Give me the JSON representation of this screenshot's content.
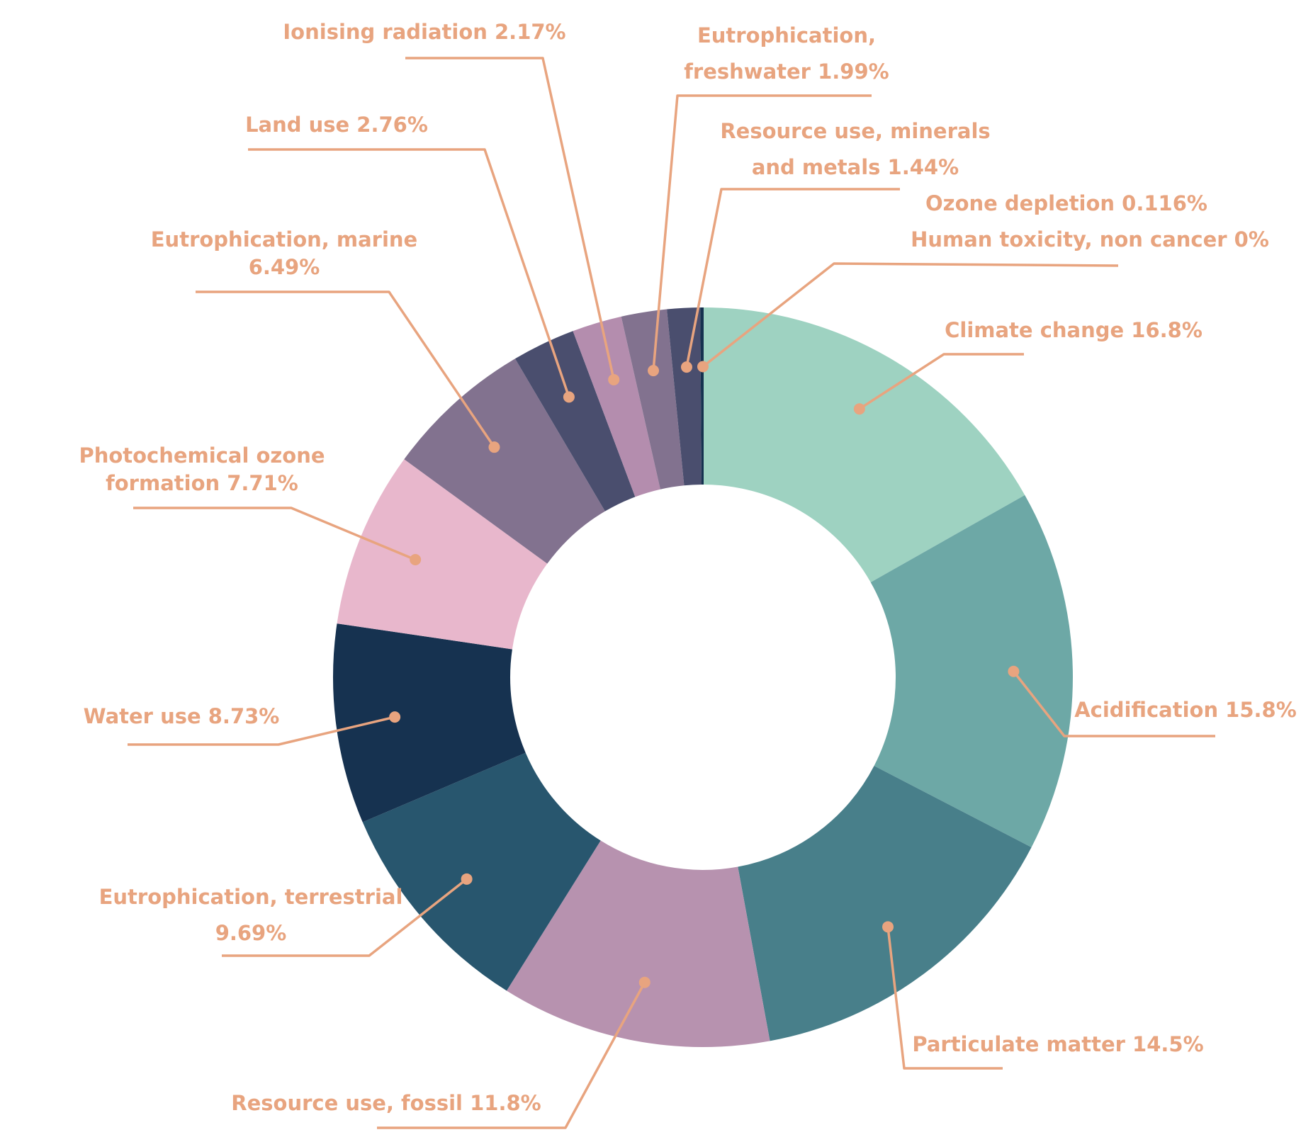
{
  "chart_data": {
    "type": "pie",
    "variant": "donut",
    "label_color": "#E8A47F",
    "slices": [
      {
        "label": [
          "Climate change 16.8%"
        ],
        "value": 16.8,
        "color": "#9ED2C1"
      },
      {
        "label": [
          "Acidification 15.8%"
        ],
        "value": 15.8,
        "color": "#6DA8A6"
      },
      {
        "label": [
          "Particulate matter 14.5%"
        ],
        "value": 14.5,
        "color": "#487F8A"
      },
      {
        "label": [
          "Resource use, fossil 11.8%"
        ],
        "value": 11.8,
        "color": "#B792AF"
      },
      {
        "label": [
          "Eutrophication, terrestrial",
          "9.69%"
        ],
        "value": 9.69,
        "color": "#28566E"
      },
      {
        "label": [
          "Water use 8.73%"
        ],
        "value": 8.73,
        "color": "#163250"
      },
      {
        "label": [
          "Photochemical ozone",
          "formation 7.71%"
        ],
        "value": 7.71,
        "color": "#E8B7CC"
      },
      {
        "label": [
          "Eutrophication, marine",
          "6.49%"
        ],
        "value": 6.49,
        "color": "#82728F"
      },
      {
        "label": [
          "Land use 2.76%"
        ],
        "value": 2.76,
        "color": "#4A4E6E"
      },
      {
        "label": [
          "Ionising radiation 2.17%"
        ],
        "value": 2.17,
        "color": "#B48DAE"
      },
      {
        "label": [
          "Eutrophication,",
          "freshwater 1.99%"
        ],
        "value": 1.99,
        "color": "#82728F"
      },
      {
        "label": [
          "Resource use, minerals",
          "and metals 1.44%"
        ],
        "value": 1.44,
        "color": "#4A4E6E"
      },
      {
        "label": [
          "Ozone depletion 0.116%"
        ],
        "value": 0.116,
        "color": "#163250"
      },
      {
        "label": [
          "Human toxicity, non cancer 0%"
        ],
        "value": 0,
        "color": "#163250"
      }
    ]
  }
}
